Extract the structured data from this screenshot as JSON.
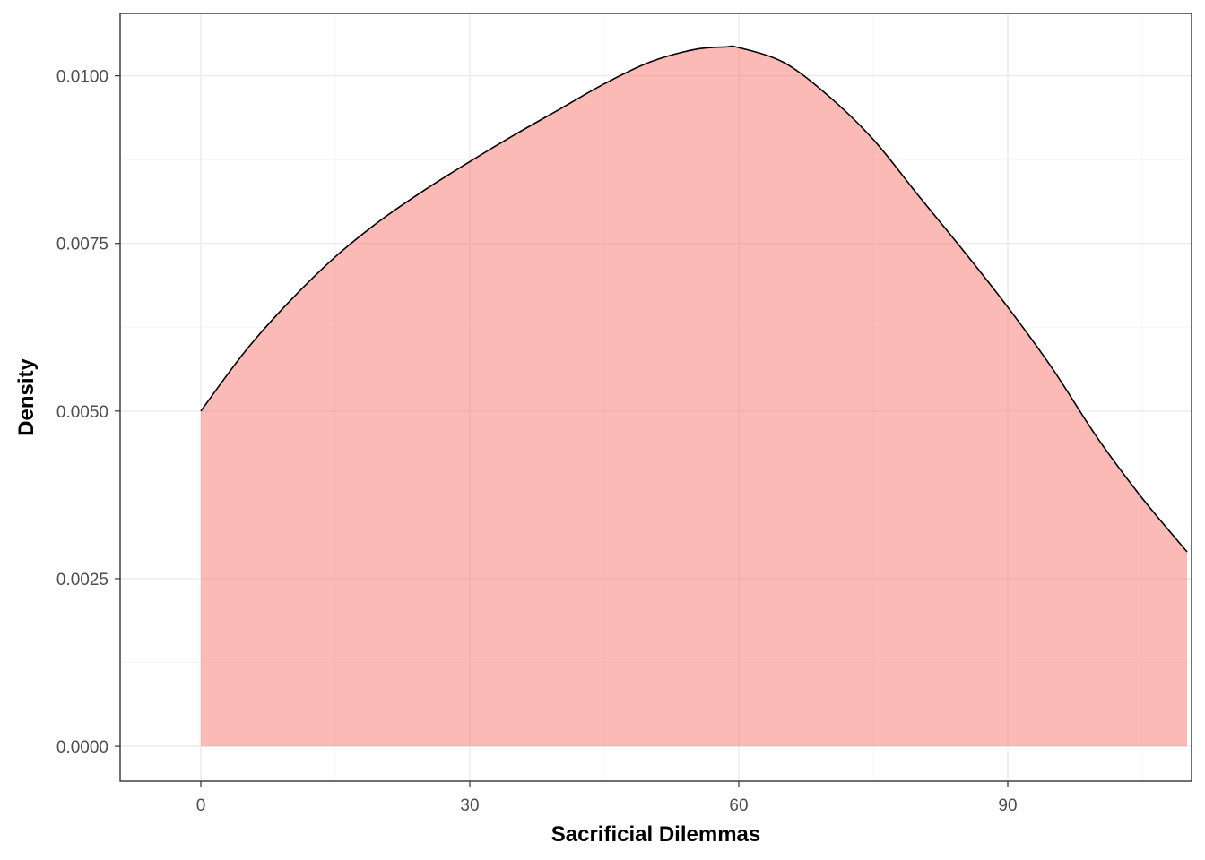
{
  "chart_data": {
    "type": "area",
    "xlabel": "Sacrificial Dilemmas",
    "ylabel": "Density",
    "xlim": [
      -9,
      110.5
    ],
    "ylim": [
      -0.00052,
      0.01093
    ],
    "x_ticks": [
      0,
      30,
      60,
      90
    ],
    "x_tick_labels": [
      "0",
      "30",
      "60",
      "90"
    ],
    "x_minor_ticks": [
      15,
      45,
      75,
      105
    ],
    "y_ticks": [
      0,
      0.0025,
      0.005,
      0.0075,
      0.01
    ],
    "y_tick_labels": [
      "0.0000",
      "0.0025",
      "0.0050",
      "0.0075",
      "0.0100"
    ],
    "y_minor_ticks": [
      0.00125,
      0.00375,
      0.00625,
      0.00875,
      0.01125
    ],
    "grid": true,
    "legend": "none",
    "fill_color": "#F8766D",
    "fill_opacity": 0.5,
    "line_color": "#000000",
    "series": [
      {
        "x": [
          0,
          5,
          10,
          15,
          20,
          25,
          30,
          35,
          40,
          45,
          50,
          55,
          58.5,
          60,
          65,
          70,
          75,
          80,
          85,
          90,
          95,
          100,
          105,
          110
        ],
        "values": [
          0.005,
          0.0059,
          0.00665,
          0.0073,
          0.00784,
          0.0083,
          0.00872,
          0.00912,
          0.0095,
          0.00988,
          0.0102,
          0.01039,
          0.01043,
          0.01042,
          0.0102,
          0.0097,
          0.00905,
          0.00822,
          0.0074,
          0.00655,
          0.00563,
          0.0046,
          0.0037,
          0.0029
        ]
      }
    ]
  }
}
